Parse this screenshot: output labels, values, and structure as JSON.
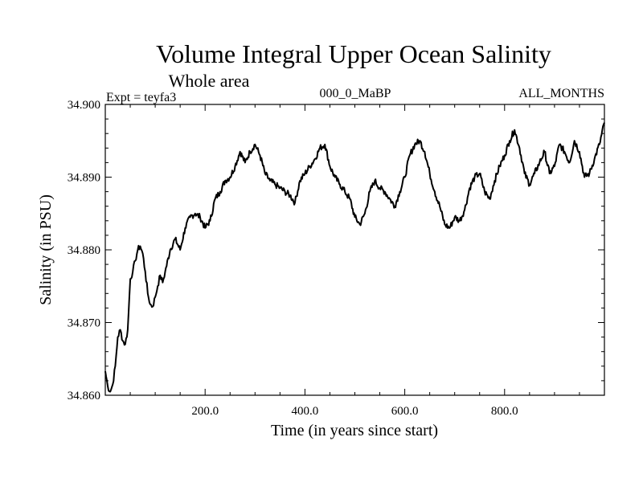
{
  "chart_data": {
    "type": "line",
    "title": "Volume Integral Upper Ocean Salinity",
    "subtitle": "Whole area",
    "experiment": "Expt = teyfa3",
    "run_label": "000_0_MaBP",
    "months_label": "ALL_MONTHS",
    "xlabel": "Time (in years since start)",
    "ylabel": "Salinity (in PSU)",
    "xlim": [
      0,
      1000
    ],
    "ylim": [
      34.86,
      34.9
    ],
    "x_ticks": [
      200,
      400,
      600,
      800
    ],
    "x_tick_labels": [
      "200.0",
      "400.0",
      "600.0",
      "800.0"
    ],
    "y_ticks": [
      34.86,
      34.87,
      34.88,
      34.89,
      34.9
    ],
    "y_tick_labels": [
      "34.860",
      "34.870",
      "34.880",
      "34.890",
      "34.900"
    ],
    "grid": false,
    "series": [
      {
        "name": "salinity",
        "x": [
          0,
          5,
          10,
          15,
          20,
          25,
          30,
          35,
          40,
          45,
          50,
          55,
          60,
          65,
          70,
          75,
          80,
          85,
          90,
          95,
          100,
          105,
          110,
          115,
          120,
          130,
          140,
          150,
          160,
          170,
          180,
          190,
          200,
          210,
          220,
          230,
          240,
          250,
          260,
          270,
          280,
          290,
          300,
          310,
          320,
          330,
          340,
          350,
          360,
          370,
          380,
          390,
          400,
          410,
          420,
          430,
          440,
          450,
          460,
          470,
          480,
          490,
          500,
          510,
          520,
          530,
          540,
          550,
          560,
          570,
          580,
          590,
          600,
          610,
          620,
          630,
          640,
          650,
          660,
          670,
          680,
          690,
          700,
          710,
          720,
          730,
          740,
          750,
          760,
          770,
          780,
          790,
          800,
          810,
          820,
          830,
          840,
          850,
          860,
          870,
          880,
          890,
          900,
          910,
          920,
          930,
          940,
          950,
          960,
          970,
          980,
          990,
          1000
        ],
        "values": [
          34.8633,
          34.8612,
          34.8605,
          34.8615,
          34.864,
          34.868,
          34.869,
          34.8675,
          34.867,
          34.869,
          34.876,
          34.877,
          34.8785,
          34.88,
          34.8805,
          34.8795,
          34.877,
          34.874,
          34.8725,
          34.8722,
          34.8735,
          34.875,
          34.8765,
          34.8755,
          34.877,
          34.88,
          34.8815,
          34.88,
          34.883,
          34.8845,
          34.885,
          34.8845,
          34.883,
          34.884,
          34.887,
          34.888,
          34.8895,
          34.89,
          34.8915,
          34.8935,
          34.892,
          34.8935,
          34.8945,
          34.893,
          34.8905,
          34.8895,
          34.889,
          34.8885,
          34.888,
          34.8875,
          34.8865,
          34.8895,
          34.8905,
          34.8915,
          34.8925,
          34.894,
          34.8945,
          34.8915,
          34.89,
          34.889,
          34.888,
          34.887,
          34.8845,
          34.8835,
          34.885,
          34.888,
          34.8895,
          34.8885,
          34.888,
          34.887,
          34.886,
          34.888,
          34.89,
          34.893,
          34.8945,
          34.895,
          34.8935,
          34.8905,
          34.888,
          34.886,
          34.8835,
          34.883,
          34.8845,
          34.884,
          34.8855,
          34.8885,
          34.89,
          34.8905,
          34.888,
          34.887,
          34.8895,
          34.8915,
          34.893,
          34.895,
          34.8965,
          34.894,
          34.8905,
          34.889,
          34.8905,
          34.892,
          34.8935,
          34.8905,
          34.8915,
          34.8945,
          34.8935,
          34.892,
          34.895,
          34.8935,
          34.89,
          34.8905,
          34.8925,
          34.8945,
          34.8975
        ]
      }
    ]
  }
}
